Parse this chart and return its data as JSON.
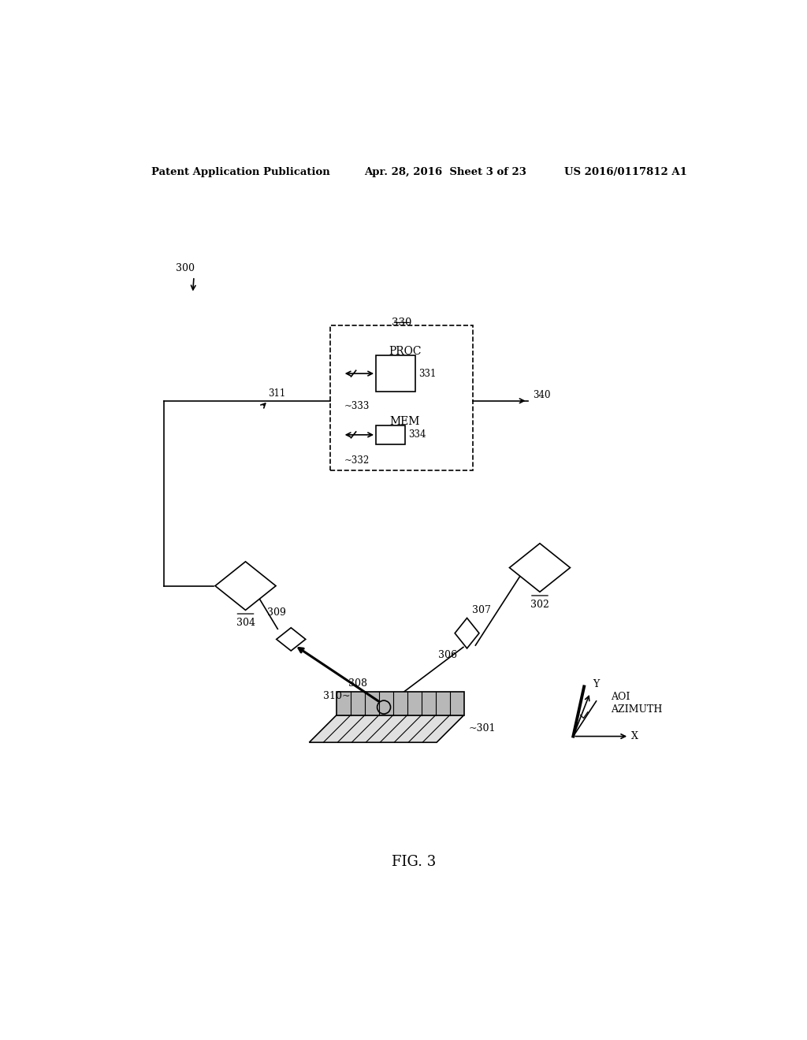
{
  "bg_color": "#ffffff",
  "header_left": "Patent Application Publication",
  "header_center": "Apr. 28, 2016  Sheet 3 of 23",
  "header_right": "US 2016/0117812 A1",
  "fig_label": "FIG. 3",
  "ref_300": "300",
  "ref_302": "302",
  "ref_304": "304",
  "ref_306": "306",
  "ref_307": "307",
  "ref_308": "308",
  "ref_309": "309",
  "ref_310": "310",
  "ref_311": "311",
  "ref_330": "330",
  "ref_331": "331",
  "ref_332": "332",
  "ref_333": "333",
  "ref_334": "334",
  "ref_340": "340",
  "ref_301": "301",
  "label_proc": "PROC",
  "label_mem": "MEM",
  "label_aoi": "AOI",
  "label_azimuth": "AZIMUTH",
  "label_x": "X",
  "label_y": "Y"
}
